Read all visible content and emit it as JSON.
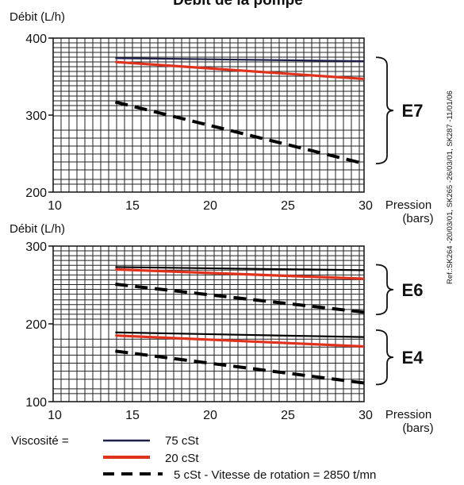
{
  "title": "Débit  de la pompe",
  "reference": "Ref.:SK264 -20/03/01, SK265 -26/03/01, SK287 -11/01/06",
  "legend": {
    "label": "Viscosité =",
    "items": [
      {
        "text": "75 cSt",
        "color": "#1f1f4a",
        "style": "solid"
      },
      {
        "text": "20 cSt",
        "color": "#e0311c",
        "style": "solid"
      },
      {
        "text": "5 cSt - Vitesse de rotation = 2850 t/mn",
        "color": "#000000",
        "style": "dashed"
      }
    ]
  },
  "chart_data": [
    {
      "type": "line",
      "ylabel": "Débit (L/h)",
      "xlabel": "Pression (bars)",
      "xlim": [
        10,
        30
      ],
      "ylim": [
        200,
        400
      ],
      "xticks": [
        "10",
        "15",
        "20",
        "25",
        "30"
      ],
      "yticks": [
        "200",
        "300",
        "400"
      ],
      "grid": true,
      "groups": [
        {
          "label": "E7",
          "brace_range": [
            237,
            375
          ]
        }
      ],
      "series": [
        {
          "name": "75 cSt",
          "color": "#1f1f4a",
          "style": "solid",
          "x": [
            14,
            30
          ],
          "y": [
            374,
            370
          ]
        },
        {
          "name": "20 cSt",
          "color": "#e0311c",
          "style": "solid",
          "x": [
            14,
            30
          ],
          "y": [
            369,
            347
          ]
        },
        {
          "name": "5 cSt",
          "color": "#000000",
          "style": "dashed",
          "x": [
            14,
            30
          ],
          "y": [
            317,
            237
          ]
        }
      ]
    },
    {
      "type": "line",
      "ylabel": "Débit (L/h)",
      "xlabel": "Pression (bars)",
      "xlim": [
        10,
        30
      ],
      "ylim": [
        100,
        300
      ],
      "xticks": [
        "10",
        "15",
        "20",
        "25",
        "30"
      ],
      "yticks": [
        "100",
        "200",
        "300"
      ],
      "grid": true,
      "groups": [
        {
          "label": "E6",
          "brace_range": [
            212,
            276
          ]
        },
        {
          "label": "E4",
          "brace_range": [
            122,
            192
          ]
        }
      ],
      "series": [
        {
          "name": "75 cSt",
          "group": "E6",
          "color": "#000000",
          "style": "solid",
          "x": [
            14,
            30
          ],
          "y": [
            273,
            269
          ]
        },
        {
          "name": "20 cSt",
          "group": "E6",
          "color": "#e0311c",
          "style": "solid",
          "x": [
            14,
            30
          ],
          "y": [
            270,
            258
          ]
        },
        {
          "name": "5 cSt",
          "group": "E6",
          "color": "#000000",
          "style": "dashed",
          "x": [
            14,
            30
          ],
          "y": [
            251,
            215
          ]
        },
        {
          "name": "75 cSt",
          "group": "E4",
          "color": "#000000",
          "style": "solid",
          "x": [
            14,
            30
          ],
          "y": [
            189,
            183
          ]
        },
        {
          "name": "20 cSt",
          "group": "E4",
          "color": "#e0311c",
          "style": "solid",
          "x": [
            14,
            30
          ],
          "y": [
            185,
            171
          ]
        },
        {
          "name": "5 cSt",
          "group": "E4",
          "color": "#000000",
          "style": "dashed",
          "x": [
            14,
            30
          ],
          "y": [
            165,
            124
          ]
        }
      ]
    }
  ]
}
